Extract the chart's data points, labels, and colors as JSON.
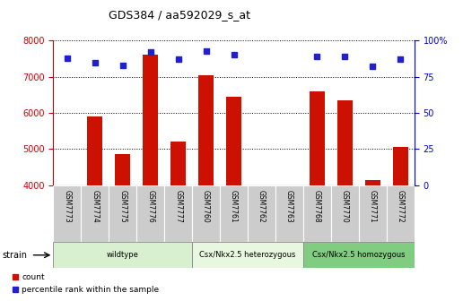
{
  "title": "GDS384 / aa592029_s_at",
  "samples": [
    "GSM7773",
    "GSM7774",
    "GSM7775",
    "GSM7776",
    "GSM7777",
    "GSM7760",
    "GSM7761",
    "GSM7762",
    "GSM7763",
    "GSM7768",
    "GSM7770",
    "GSM7771",
    "GSM7772"
  ],
  "counts": [
    4000,
    5900,
    4850,
    7600,
    5200,
    7050,
    6450,
    4000,
    4000,
    6600,
    6350,
    4150,
    5050
  ],
  "percentiles": [
    88,
    85,
    83,
    92,
    87,
    93,
    90,
    null,
    null,
    89,
    89,
    82,
    87
  ],
  "groups": [
    {
      "label": "wildtype",
      "start": 0,
      "end": 4,
      "color": "#d8f0d0"
    },
    {
      "label": "Csx/Nkx2.5 heterozygous",
      "start": 5,
      "end": 8,
      "color": "#e8f8e0"
    },
    {
      "label": "Csx/Nkx2.5 homozygous",
      "start": 9,
      "end": 12,
      "color": "#80cc80"
    }
  ],
  "ylim": [
    4000,
    8000
  ],
  "y2lim": [
    0,
    100
  ],
  "bar_color": "#cc1100",
  "dot_color": "#2020cc",
  "ylabel_color": "#cc0000",
  "y2label_color": "#0000cc",
  "yticks": [
    4000,
    5000,
    6000,
    7000,
    8000
  ],
  "y2ticks": [
    0,
    25,
    50,
    75,
    100
  ],
  "y2ticklabels": [
    "0",
    "25",
    "50",
    "75",
    "100%"
  ],
  "sample_box_color": "#cccccc",
  "grid_color": "#444444"
}
